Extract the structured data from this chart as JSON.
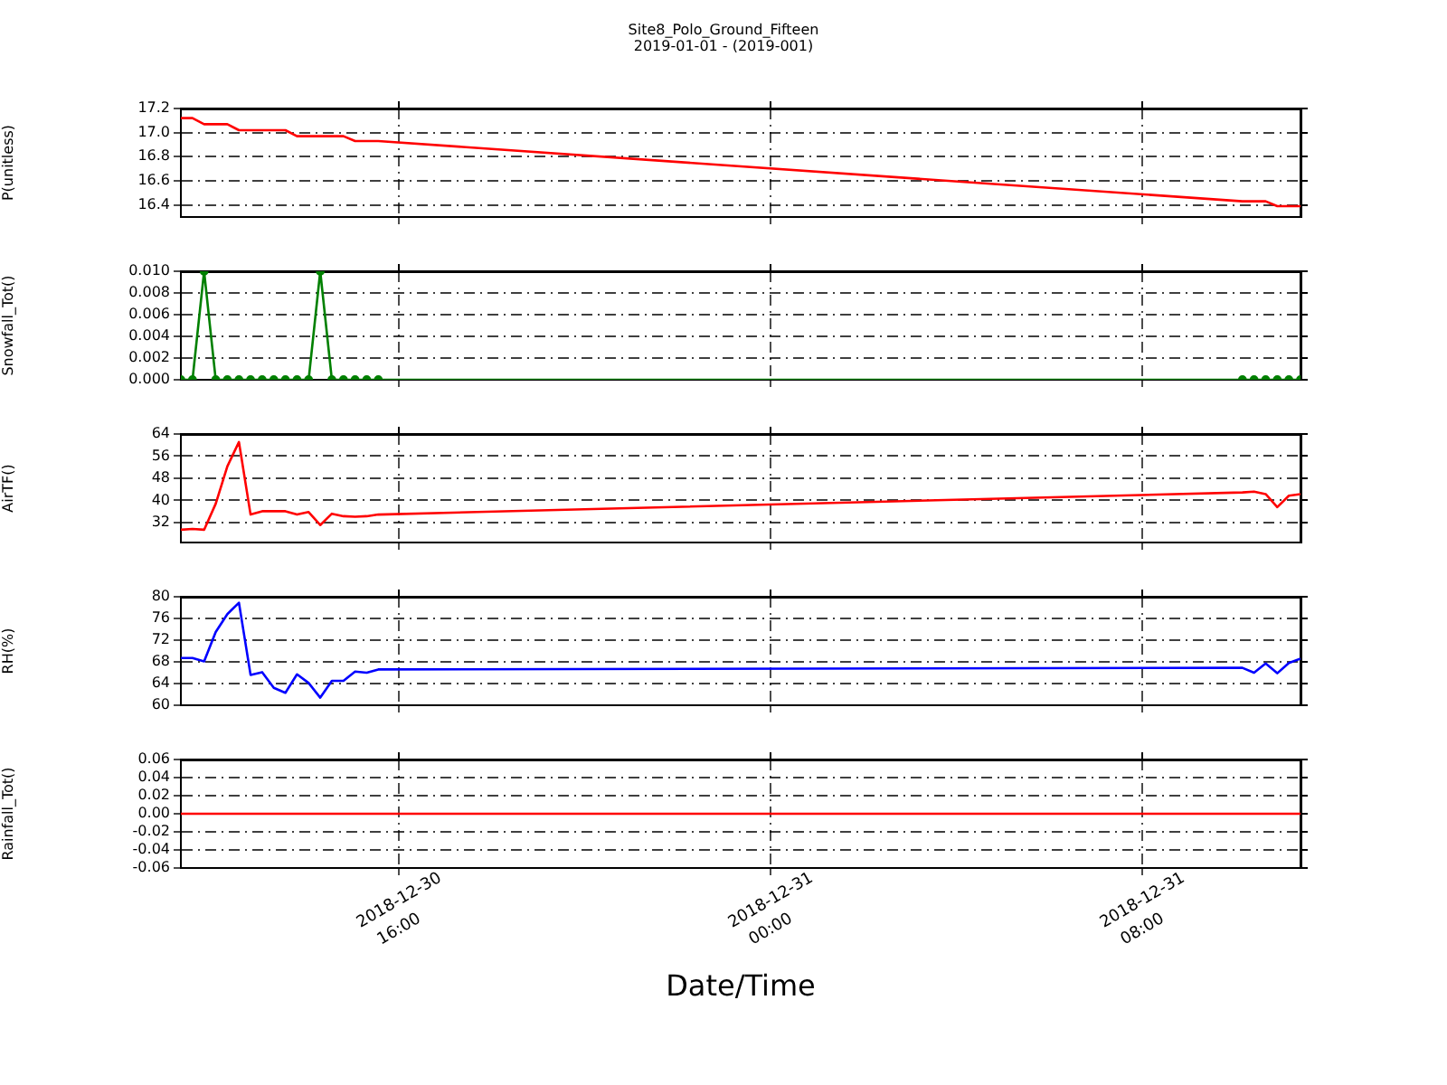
{
  "chart_data": [
    {
      "type": "line",
      "title": "Site8_Polo_Ground_Fifteen",
      "subtitle": "2019-01-01 - (2019-001)",
      "ylabel": "P(unitless)",
      "tick_labels": "y",
      "grid": true,
      "color": "#ff0000",
      "x": [
        "2018-12-30T11:18",
        "2018-12-30T11:33",
        "2018-12-30T11:48",
        "2018-12-30T12:03",
        "2018-12-30T12:18",
        "2018-12-30T12:33",
        "2018-12-30T12:48",
        "2018-12-30T13:03",
        "2018-12-30T13:18",
        "2018-12-30T13:33",
        "2018-12-30T13:48",
        "2018-12-30T14:03",
        "2018-12-30T14:18",
        "2018-12-30T14:33",
        "2018-12-30T14:48",
        "2018-12-30T15:03",
        "2018-12-30T15:18",
        "2018-12-30T15:33",
        "2018-12-31T10:09",
        "2018-12-31T10:24",
        "2018-12-31T10:39",
        "2018-12-31T10:54",
        "2018-12-31T11:09",
        "2018-12-31T11:24"
      ],
      "values": [
        17.12,
        17.12,
        17.07,
        17.07,
        17.07,
        17.02,
        17.02,
        17.02,
        17.02,
        17.02,
        16.97,
        16.97,
        16.97,
        16.97,
        16.97,
        16.93,
        16.93,
        16.93,
        16.43,
        16.43,
        16.43,
        16.39,
        16.39,
        16.39
      ],
      "xlim": [
        "2018-12-30T11:18",
        "2018-12-31T11:24"
      ],
      "xticks": [
        "2018-12-30T16:00",
        "2018-12-31T00:00",
        "2018-12-31T08:00"
      ],
      "ylim": [
        16.3,
        17.2
      ],
      "yticks": [
        16.4,
        16.6,
        16.8,
        {
          "value": 17,
          "label": "17.0"
        },
        17.2
      ]
    },
    {
      "type": "line",
      "ylabel": "Snowfall_Tot()",
      "tick_labels": "y",
      "grid": true,
      "color": "#008000",
      "marker": "circle",
      "x": [
        "2018-12-30T11:18",
        "2018-12-30T11:33",
        "2018-12-30T11:48",
        "2018-12-30T12:03",
        "2018-12-30T12:18",
        "2018-12-30T12:33",
        "2018-12-30T12:48",
        "2018-12-30T13:03",
        "2018-12-30T13:18",
        "2018-12-30T13:33",
        "2018-12-30T13:48",
        "2018-12-30T14:03",
        "2018-12-30T14:18",
        "2018-12-30T14:33",
        "2018-12-30T14:48",
        "2018-12-30T15:03",
        "2018-12-30T15:18",
        "2018-12-30T15:33",
        "2018-12-31T10:09",
        "2018-12-31T10:24",
        "2018-12-31T10:39",
        "2018-12-31T10:54",
        "2018-12-31T11:09",
        "2018-12-31T11:24"
      ],
      "values": [
        0,
        0,
        0.01,
        0,
        0,
        0,
        0,
        0,
        0,
        0,
        0,
        0,
        0.01,
        0,
        0,
        0,
        0,
        0,
        0,
        0,
        0,
        0,
        0,
        0
      ],
      "xlim": [
        "2018-12-30T11:18",
        "2018-12-31T11:24"
      ],
      "xticks": [
        "2018-12-30T16:00",
        "2018-12-31T00:00",
        "2018-12-31T08:00"
      ],
      "ylim": [
        0,
        0.01
      ],
      "yticks": [
        {
          "value": 0,
          "label": "0.000"
        },
        {
          "value": 0.002,
          "label": "0.002"
        },
        {
          "value": 0.004,
          "label": "0.004"
        },
        {
          "value": 0.006,
          "label": "0.006"
        },
        {
          "value": 0.008,
          "label": "0.008"
        },
        {
          "value": 0.01,
          "label": "0.010"
        }
      ]
    },
    {
      "type": "line",
      "ylabel": "AirTF()",
      "tick_labels": "y",
      "grid": true,
      "color": "#ff0000",
      "x": [
        "2018-12-30T11:18",
        "2018-12-30T11:33",
        "2018-12-30T11:48",
        "2018-12-30T12:03",
        "2018-12-30T12:18",
        "2018-12-30T12:33",
        "2018-12-30T12:48",
        "2018-12-30T13:03",
        "2018-12-30T13:18",
        "2018-12-30T13:33",
        "2018-12-30T13:48",
        "2018-12-30T14:03",
        "2018-12-30T14:18",
        "2018-12-30T14:33",
        "2018-12-30T14:48",
        "2018-12-30T15:03",
        "2018-12-30T15:18",
        "2018-12-30T15:33",
        "2018-12-31T10:09",
        "2018-12-31T10:24",
        "2018-12-31T10:39",
        "2018-12-31T10:54",
        "2018-12-31T11:09",
        "2018-12-31T11:24"
      ],
      "values": [
        29.4,
        29.7,
        29.4,
        38.8,
        52.3,
        61.1,
        34.9,
        36.1,
        36.1,
        36.1,
        34.9,
        35.8,
        31.1,
        35.2,
        34.3,
        34.1,
        34.3,
        34.9,
        42.9,
        43.2,
        42.3,
        37.6,
        41.7,
        42.3
      ],
      "xlim": [
        "2018-12-30T11:18",
        "2018-12-31T11:24"
      ],
      "xticks": [
        "2018-12-30T16:00",
        "2018-12-31T00:00",
        "2018-12-31T08:00"
      ],
      "ylim": [
        24.8,
        64
      ],
      "yticks": [
        32,
        40,
        48,
        56,
        64
      ]
    },
    {
      "type": "line",
      "ylabel": "RH(%)",
      "tick_labels": "y",
      "grid": true,
      "color": "#0000ff",
      "x": [
        "2018-12-30T11:18",
        "2018-12-30T11:33",
        "2018-12-30T11:48",
        "2018-12-30T12:03",
        "2018-12-30T12:18",
        "2018-12-30T12:33",
        "2018-12-30T12:48",
        "2018-12-30T13:03",
        "2018-12-30T13:18",
        "2018-12-30T13:33",
        "2018-12-30T13:48",
        "2018-12-30T14:03",
        "2018-12-30T14:18",
        "2018-12-30T14:33",
        "2018-12-30T14:48",
        "2018-12-30T15:03",
        "2018-12-30T15:18",
        "2018-12-30T15:33",
        "2018-12-31T10:09",
        "2018-12-31T10:24",
        "2018-12-31T10:39",
        "2018-12-31T10:54",
        "2018-12-31T11:09",
        "2018-12-31T11:24"
      ],
      "values": [
        68.7,
        68.7,
        68.1,
        73.5,
        76.8,
        78.9,
        65.6,
        66.1,
        63.2,
        62.3,
        65.7,
        64.1,
        61.4,
        64.5,
        64.5,
        66.2,
        66.0,
        66.6,
        66.9,
        66.0,
        67.7,
        65.9,
        67.8,
        68.6
      ],
      "xlim": [
        "2018-12-30T11:18",
        "2018-12-31T11:24"
      ],
      "xticks": [
        "2018-12-30T16:00",
        "2018-12-31T00:00",
        "2018-12-31T08:00"
      ],
      "ylim": [
        60,
        80
      ],
      "yticks": [
        60,
        64,
        68,
        72,
        76,
        80
      ]
    },
    {
      "type": "line",
      "ylabel": "Rainfall_Tot()",
      "xlabel": "Date/Time",
      "grid": true,
      "color": "#ff0000",
      "x": [
        "2018-12-30T11:18",
        "2018-12-30T11:33",
        "2018-12-30T11:48",
        "2018-12-30T12:03",
        "2018-12-30T12:18",
        "2018-12-30T12:33",
        "2018-12-30T12:48",
        "2018-12-30T13:03",
        "2018-12-30T13:18",
        "2018-12-30T13:33",
        "2018-12-30T13:48",
        "2018-12-30T14:03",
        "2018-12-30T14:18",
        "2018-12-30T14:33",
        "2018-12-30T14:48",
        "2018-12-30T15:03",
        "2018-12-30T15:18",
        "2018-12-30T15:33",
        "2018-12-31T10:09",
        "2018-12-31T10:24",
        "2018-12-31T10:39",
        "2018-12-31T10:54",
        "2018-12-31T11:09",
        "2018-12-31T11:24"
      ],
      "values": [
        0,
        0,
        0,
        0,
        0,
        0,
        0,
        0,
        0,
        0,
        0,
        0,
        0,
        0,
        0,
        0,
        0,
        0,
        0,
        0,
        0,
        0,
        0,
        0
      ],
      "xlim": [
        "2018-12-30T11:18",
        "2018-12-31T11:24"
      ],
      "xticks": [
        {
          "value": "2018-12-30T16:00",
          "label": "2018-12-30\n16:00"
        },
        {
          "value": "2018-12-31T00:00",
          "label": "2018-12-31\n00:00"
        },
        {
          "value": "2018-12-31T08:00",
          "label": "2018-12-31\n08:00"
        }
      ],
      "ylim": [
        -0.06,
        0.06
      ],
      "yticks": [
        {
          "value": -0.06,
          "label": "-0.06"
        },
        {
          "value": -0.04,
          "label": "-0.04"
        },
        {
          "value": -0.02,
          "label": "-0.02"
        },
        {
          "value": 0,
          "label": "0.00"
        },
        {
          "value": 0.02,
          "label": "0.02"
        },
        {
          "value": 0.04,
          "label": "0.04"
        },
        {
          "value": 0.06,
          "label": "0.06"
        }
      ]
    }
  ]
}
